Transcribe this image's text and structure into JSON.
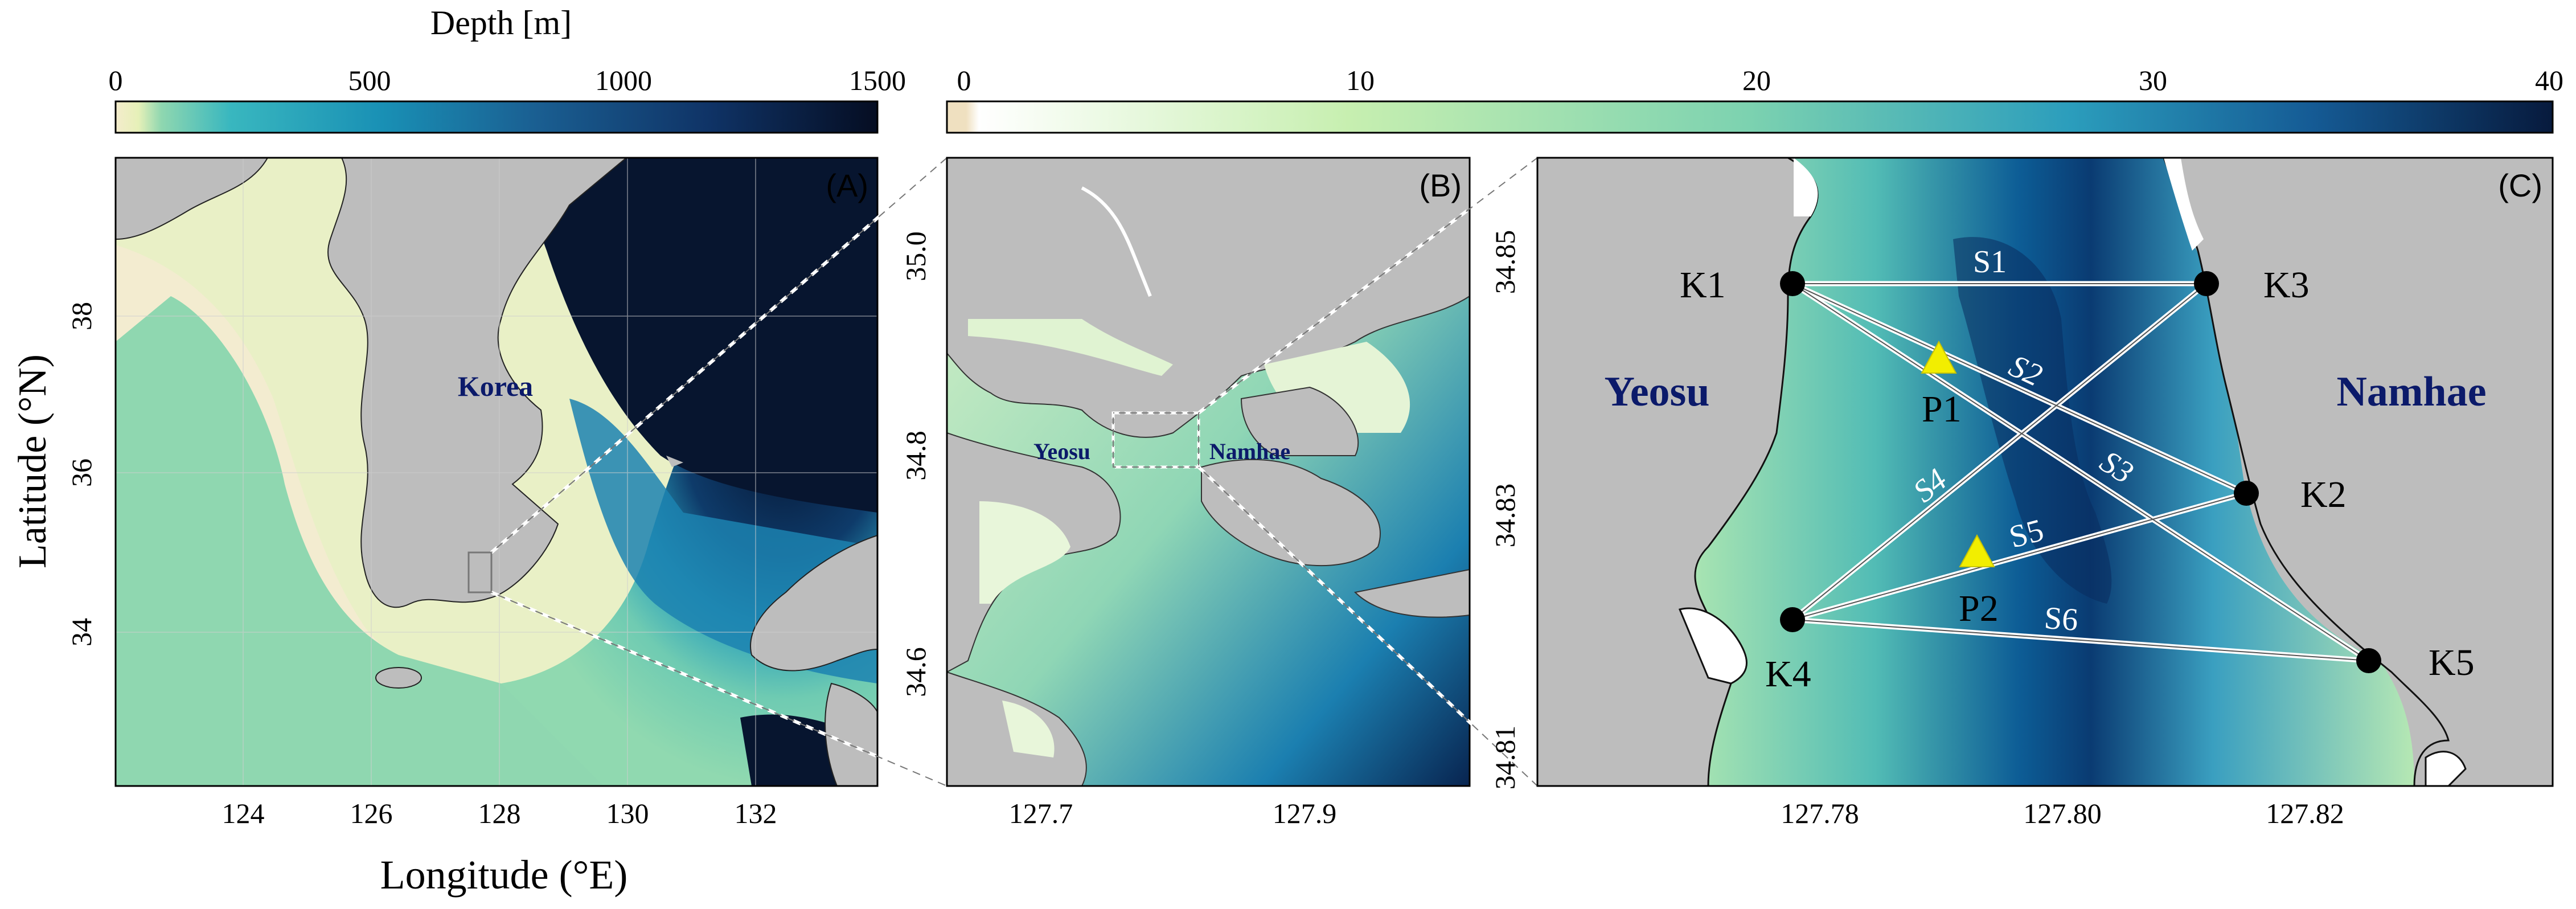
{
  "colorbar_a": {
    "title": "Depth [m]",
    "ticks": [
      "0",
      "500",
      "1000",
      "1500"
    ]
  },
  "colorbar_b": {
    "ticks": [
      "0",
      "10",
      "20",
      "30",
      "40"
    ]
  },
  "axes": {
    "ylabel": "Latitude (°N)",
    "xlabel": "Longitude (°E)"
  },
  "panel_a": {
    "tag": "(A)",
    "place": "Korea",
    "yticks": [
      "38",
      "36",
      "34"
    ],
    "xticks": [
      "124",
      "126",
      "128",
      "130",
      "132"
    ]
  },
  "panel_b": {
    "tag": "(B)",
    "place_left": "Yeosu",
    "place_right": "Namhae",
    "yticks": [
      "35.0",
      "34.8",
      "34.6"
    ],
    "xticks": [
      "127.7",
      "127.9"
    ]
  },
  "panel_c": {
    "tag": "(C)",
    "place_left": "Yeosu",
    "place_right": "Namhae",
    "yticks": [
      "34.85",
      "34.83",
      "34.81"
    ],
    "xticks": [
      "127.78",
      "127.80",
      "127.82"
    ],
    "stations": [
      "K1",
      "K2",
      "K3",
      "K4",
      "K5"
    ],
    "probes": [
      "P1",
      "P2"
    ],
    "paths": [
      "S1",
      "S2",
      "S3",
      "S4",
      "S5",
      "S6"
    ]
  },
  "colors": {
    "land": "#bdbdbd",
    "shallow": "#f3ecd0",
    "mid": "#7fd0b0",
    "deep": "#0c4a7a",
    "abyss": "#06142e",
    "station": "#000000",
    "probe": "#f2ee00",
    "label_navy": "#0b1a6a"
  }
}
